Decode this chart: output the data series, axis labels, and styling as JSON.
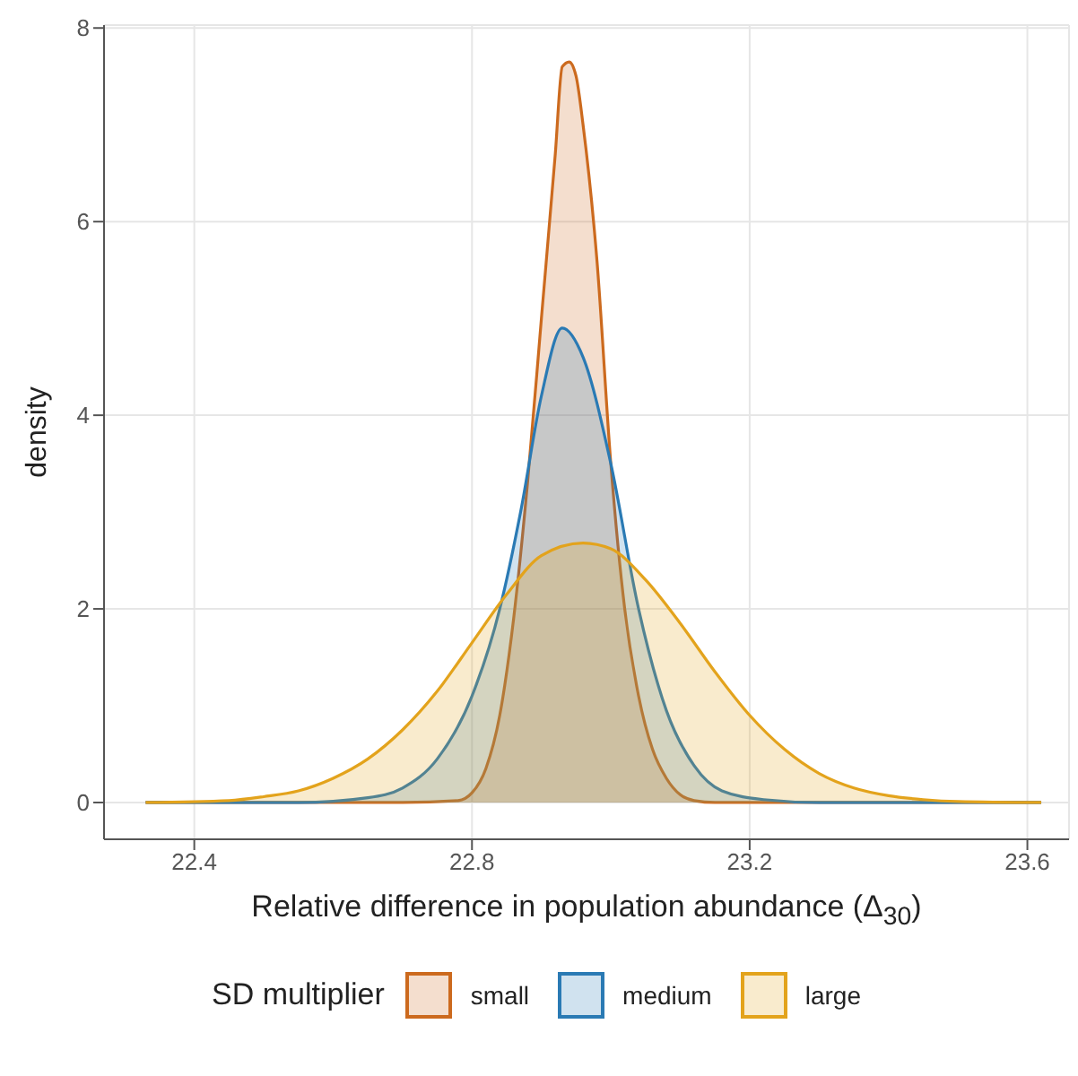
{
  "chart_data": {
    "type": "area",
    "xlabel": "Relative difference in population abundance (Δ$_{30}$)",
    "ylabel": "density",
    "legend_title": "SD multiplier",
    "legend": "bottom",
    "grid": true,
    "xlim": [
      22.27,
      23.66
    ],
    "xticks": [
      22.4,
      22.8,
      23.2,
      23.6
    ],
    "ylim": [
      -0.38,
      8.03
    ],
    "yticks": [
      0,
      2,
      4,
      6,
      8
    ],
    "series": [
      {
        "name": "small",
        "color": "#cc6a1e",
        "x": [
          22.33,
          22.7,
          22.78,
          22.8,
          22.82,
          22.84,
          22.86,
          22.88,
          22.9,
          22.92,
          22.93,
          22.94,
          22.95,
          22.96,
          22.98,
          23.0,
          23.02,
          23.04,
          23.06,
          23.08,
          23.1,
          23.12,
          23.15,
          23.62
        ],
        "values": [
          0,
          0,
          0.02,
          0.1,
          0.35,
          0.9,
          1.9,
          3.3,
          5.0,
          6.7,
          7.6,
          7.65,
          7.5,
          7.0,
          5.6,
          3.5,
          2.0,
          1.1,
          0.55,
          0.25,
          0.08,
          0.02,
          0,
          0
        ]
      },
      {
        "name": "medium",
        "color": "#2a7ab4",
        "x": [
          22.33,
          22.55,
          22.65,
          22.7,
          22.75,
          22.8,
          22.84,
          22.87,
          22.9,
          22.93,
          22.96,
          23.0,
          23.04,
          23.08,
          23.12,
          23.16,
          23.22,
          23.3,
          23.62
        ],
        "values": [
          0,
          0,
          0.05,
          0.15,
          0.45,
          1.1,
          2.0,
          3.0,
          4.2,
          4.9,
          4.6,
          3.5,
          2.0,
          0.95,
          0.38,
          0.12,
          0.03,
          0,
          0
        ]
      },
      {
        "name": "large",
        "color": "#e3a31c",
        "x": [
          22.33,
          22.45,
          22.5,
          22.55,
          22.6,
          22.65,
          22.7,
          22.75,
          22.8,
          22.85,
          22.9,
          22.96,
          23.0,
          23.05,
          23.1,
          23.15,
          23.2,
          23.25,
          23.3,
          23.35,
          23.4,
          23.45,
          23.5,
          23.62
        ],
        "values": [
          0,
          0.02,
          0.06,
          0.12,
          0.25,
          0.45,
          0.75,
          1.15,
          1.65,
          2.15,
          2.55,
          2.68,
          2.62,
          2.3,
          1.85,
          1.35,
          0.9,
          0.55,
          0.3,
          0.15,
          0.07,
          0.03,
          0.01,
          0
        ]
      }
    ]
  }
}
